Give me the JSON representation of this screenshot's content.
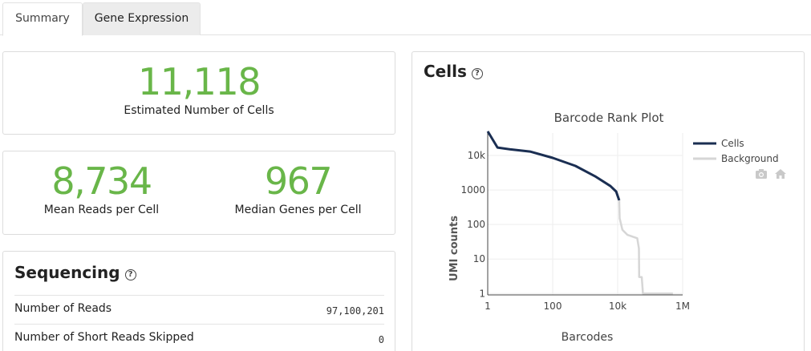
{
  "tabs": [
    {
      "label": "Summary",
      "active": true
    },
    {
      "label": "Gene Expression",
      "active": false
    }
  ],
  "metrics": {
    "cells": {
      "value": "11,118",
      "label": "Estimated Number of Cells"
    },
    "mean_reads": {
      "value": "8,734",
      "label": "Mean Reads per Cell"
    },
    "median_genes": {
      "value": "967",
      "label": "Median Genes per Cell"
    }
  },
  "sequencing": {
    "title": "Sequencing",
    "help": "?",
    "rows": [
      {
        "label": "Number of Reads",
        "value": "97,100,201"
      },
      {
        "label": "Number of Short Reads Skipped",
        "value": "0"
      }
    ]
  },
  "cells_section": {
    "title": "Cells",
    "help": "?"
  },
  "colors": {
    "accent_green": "#69b649",
    "cells_line": "#1a2e52",
    "background_line": "#d6d6d6"
  },
  "toolbar_icons": [
    "camera-icon",
    "home-icon"
  ],
  "chart_data": {
    "type": "line",
    "title": "Barcode Rank Plot",
    "xlabel": "Barcodes",
    "ylabel": "UMI counts",
    "xscale": "log",
    "yscale": "log",
    "xlim": [
      1,
      1000000
    ],
    "ylim": [
      1,
      100000
    ],
    "x_ticks": [
      {
        "v": 1,
        "label": "1"
      },
      {
        "v": 100,
        "label": "100"
      },
      {
        "v": 10000,
        "label": "10k"
      },
      {
        "v": 1000000,
        "label": "1M"
      }
    ],
    "y_ticks": [
      {
        "v": 1,
        "label": "1"
      },
      {
        "v": 10,
        "label": "10"
      },
      {
        "v": 100,
        "label": "100"
      },
      {
        "v": 1000,
        "label": "1000"
      },
      {
        "v": 10000,
        "label": "10k"
      }
    ],
    "legend_position": "top-right",
    "series": [
      {
        "name": "Cells",
        "color": "#1a2e52",
        "points": [
          [
            1,
            50000
          ],
          [
            2,
            17000
          ],
          [
            5,
            15000
          ],
          [
            20,
            13000
          ],
          [
            100,
            8500
          ],
          [
            500,
            5000
          ],
          [
            2000,
            2500
          ],
          [
            6000,
            1300
          ],
          [
            9000,
            900
          ],
          [
            11118,
            500
          ]
        ]
      },
      {
        "name": "Background",
        "color": "#d6d6d6",
        "points": [
          [
            11118,
            500
          ],
          [
            11500,
            150
          ],
          [
            14000,
            70
          ],
          [
            20000,
            50
          ],
          [
            40000,
            40
          ],
          [
            45000,
            20
          ],
          [
            46000,
            3
          ],
          [
            55000,
            3
          ],
          [
            60000,
            1
          ],
          [
            120000,
            1
          ],
          [
            500000,
            1
          ]
        ]
      }
    ]
  }
}
